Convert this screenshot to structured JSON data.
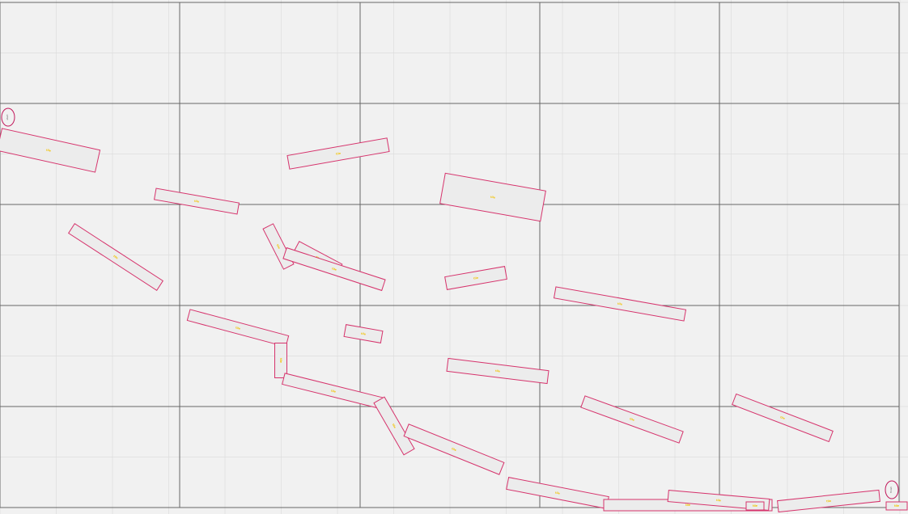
{
  "colors": {
    "background": "#f1f1f1",
    "minor_grid": "#dddddd",
    "major_grid": "#666666",
    "tile_stroke": "#d6336c",
    "tile_fill": "#ececec",
    "tile_label": "#f2c200",
    "marker_stroke": "#c2185b",
    "marker_label": "#555555"
  },
  "markers": [
    {
      "name": "start-marker",
      "label": "start"
    },
    {
      "name": "end-marker",
      "label": "finish"
    }
  ],
  "tiles": [
    {
      "name": "tile-1",
      "label": "tile"
    },
    {
      "name": "tile-2",
      "label": "tile"
    },
    {
      "name": "tile-3",
      "label": "tile"
    },
    {
      "name": "tile-4",
      "label": "tile"
    },
    {
      "name": "tile-5",
      "label": "tile"
    },
    {
      "name": "tile-6",
      "label": "tile"
    },
    {
      "name": "tile-7",
      "label": "tile"
    },
    {
      "name": "tile-8",
      "label": "tile"
    },
    {
      "name": "tile-9",
      "label": "tile"
    },
    {
      "name": "tile-10",
      "label": "tile"
    },
    {
      "name": "tile-11",
      "label": "tile"
    },
    {
      "name": "tile-12",
      "label": "tile"
    },
    {
      "name": "tile-13",
      "label": "tile"
    },
    {
      "name": "tile-14",
      "label": "tile"
    },
    {
      "name": "tile-15",
      "label": "tile"
    },
    {
      "name": "tile-16",
      "label": "tile"
    },
    {
      "name": "tile-17",
      "label": "tile"
    },
    {
      "name": "tile-18",
      "label": "tile"
    },
    {
      "name": "tile-19",
      "label": "tile"
    },
    {
      "name": "tile-20",
      "label": "tile"
    },
    {
      "name": "tile-21",
      "label": "tile"
    },
    {
      "name": "tile-22",
      "label": "tile"
    },
    {
      "name": "tile-23",
      "label": "tile"
    },
    {
      "name": "tile-24",
      "label": "tile"
    },
    {
      "name": "tile-25",
      "label": "tile"
    }
  ]
}
